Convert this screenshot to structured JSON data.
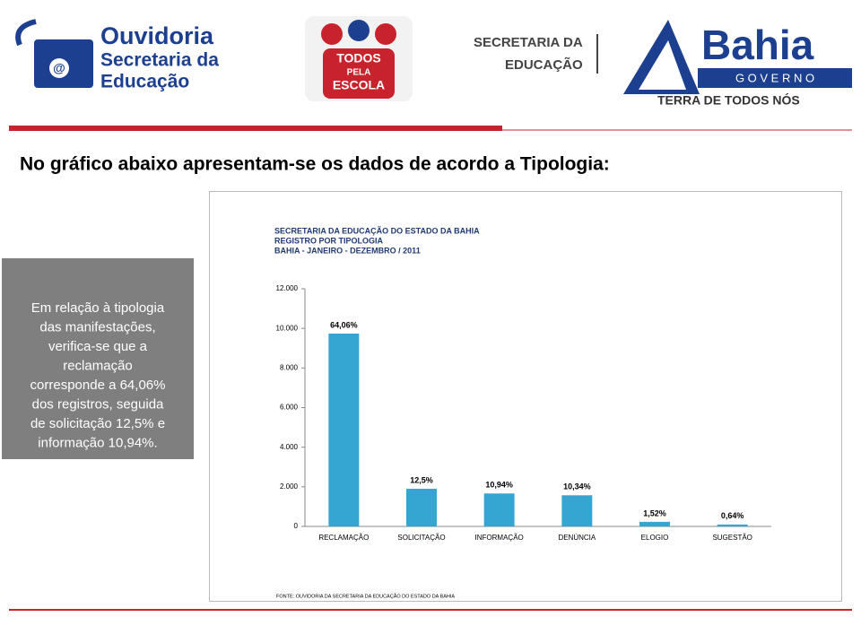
{
  "header": {
    "ouvidoria": [
      "Ouvidoria",
      "Secretaria da",
      "Educação"
    ],
    "todos": [
      "TODOS",
      "PELA",
      "ESCOLA"
    ],
    "secretaria": [
      "SECRETARIA DA",
      "EDUCAÇÃO"
    ],
    "bahia": [
      "Bahia",
      "G O V E R N O",
      "TERRA DE TODOS NÓS"
    ]
  },
  "heading": "No gráfico abaixo apresentam-se os dados de acordo a Tipologia:",
  "note": [
    "Em relação à tipologia",
    "das manifestações,",
    "verifica-se que a",
    "reclamação",
    "corresponde a 64,06%",
    "dos  registros, seguida",
    "de solicitação 12,5% e",
    "informação 10,94%."
  ],
  "chart_data": {
    "type": "bar",
    "title": [
      "SECRETARIA  DA EDUCAÇÃO DO ESTADO DA BAHIA",
      "REGISTRO  POR TIPOLOGIA",
      "BAHIA - JANEIRO - DEZEMBRO / 2011"
    ],
    "categories": [
      "RECLAMAÇÃO",
      "SOLICITAÇÃO",
      "INFORMAÇÃO",
      "DENÚNCIA",
      "ELOGIO",
      "SUGESTÃO"
    ],
    "values": [
      9737,
      1900,
      1663,
      1572,
      231,
      97
    ],
    "share_labels": [
      "64,06%",
      "12,5%",
      "10,94%",
      "10,34%",
      "1,52%",
      "0,64%"
    ],
    "color": "#35a6d2",
    "ylim": [
      0,
      12000
    ],
    "yticks": [
      0,
      {
        "value": 2000,
        "label": "2.000"
      },
      {
        "value": 4000,
        "label": "4.000"
      },
      {
        "value": 6000,
        "label": "6.000"
      },
      {
        "value": 8000,
        "label": "8.000"
      },
      {
        "value": 10000,
        "label": "10.000"
      },
      {
        "value": 12000,
        "label": "12.000"
      }
    ],
    "source": "FONTE: OUVIDORIA DA SECRETARIA  DA EDUCAÇÃO DO ESTADO DA BAHIA"
  }
}
